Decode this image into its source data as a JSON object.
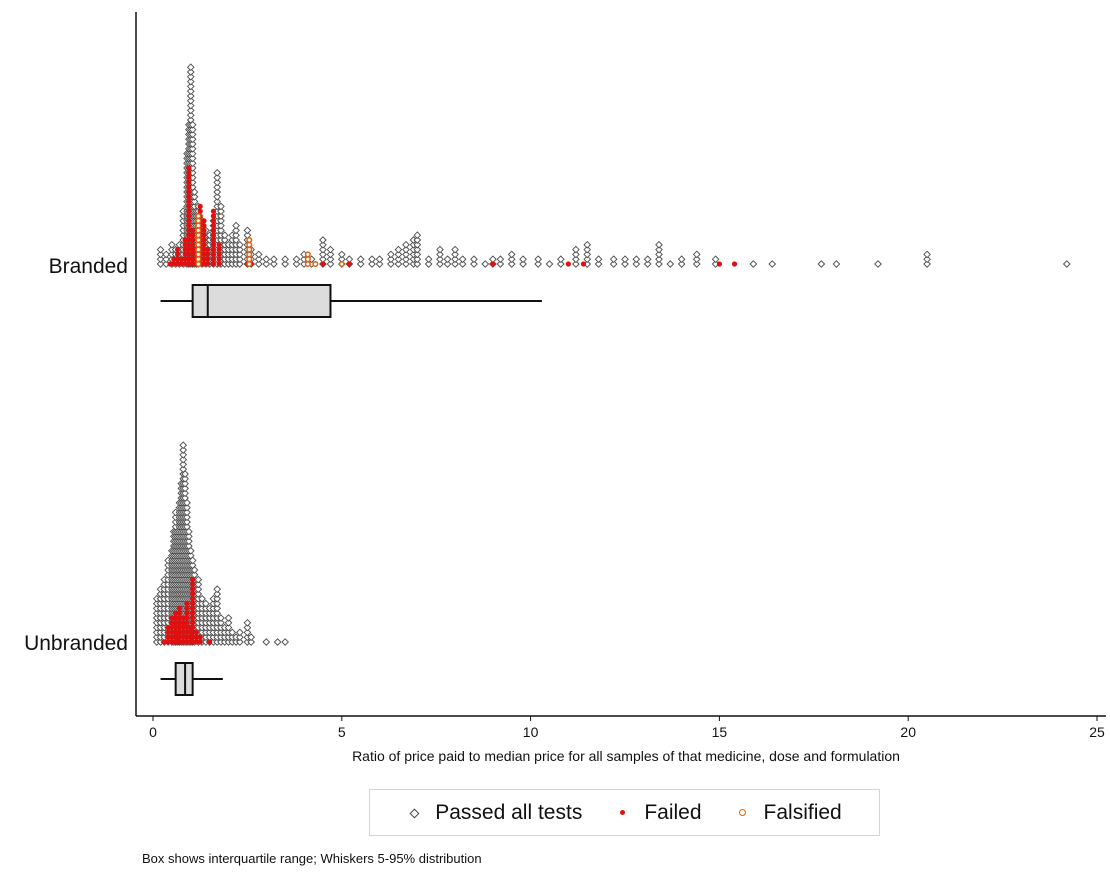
{
  "chart_data": {
    "type": "scatter",
    "categories": [
      "Branded",
      "Unbranded"
    ],
    "xlabel": "Ratio of price paid to median price for all samples of that medicine, dose and formulation",
    "xlim": [
      0,
      25
    ],
    "x_ticks": [
      0,
      5,
      10,
      15,
      20,
      25
    ],
    "legend": {
      "placement": "bottom",
      "entries": [
        {
          "name": "Passed all tests",
          "marker": "diamond",
          "color": "#444444"
        },
        {
          "name": "Failed",
          "marker": "filled-dot",
          "color": "#e01010"
        },
        {
          "name": "Falsified",
          "marker": "open-dot",
          "color": "#e0600c"
        }
      ]
    },
    "caption": "Box shows interquartile range; Whiskers 5-95% distribution",
    "boxes": [
      {
        "category": "Branded",
        "whisker_low": 0.2,
        "q1": 1.05,
        "median": 1.45,
        "q3": 4.7,
        "whisker_high": 10.3
      },
      {
        "category": "Unbranded",
        "whisker_low": 0.2,
        "q1": 0.6,
        "median": 0.85,
        "q3": 1.05,
        "whisker_high": 1.85
      }
    ],
    "series": [
      {
        "name": "Passed all tests",
        "stacks": {
          "Branded": [
            [
              0.2,
              4
            ],
            [
              0.35,
              3
            ],
            [
              0.5,
              5
            ],
            [
              0.6,
              4
            ],
            [
              0.7,
              5
            ],
            [
              0.8,
              12
            ],
            [
              0.9,
              24
            ],
            [
              0.95,
              30
            ],
            [
              1.0,
              42
            ],
            [
              1.05,
              30
            ],
            [
              1.1,
              16
            ],
            [
              1.15,
              12
            ],
            [
              1.2,
              13
            ],
            [
              1.3,
              10
            ],
            [
              1.4,
              8
            ],
            [
              1.5,
              7
            ],
            [
              1.6,
              10
            ],
            [
              1.7,
              20
            ],
            [
              1.8,
              13
            ],
            [
              1.9,
              7
            ],
            [
              2.0,
              5
            ],
            [
              2.1,
              7
            ],
            [
              2.2,
              9
            ],
            [
              2.3,
              5
            ],
            [
              2.5,
              8
            ],
            [
              2.6,
              4
            ],
            [
              2.8,
              3
            ],
            [
              3.0,
              2
            ],
            [
              3.2,
              2
            ],
            [
              3.5,
              2
            ],
            [
              3.8,
              2
            ],
            [
              4.0,
              3
            ],
            [
              4.2,
              2
            ],
            [
              4.5,
              6
            ],
            [
              4.7,
              4
            ],
            [
              5.0,
              3
            ],
            [
              5.2,
              2
            ],
            [
              5.5,
              2
            ],
            [
              5.8,
              2
            ],
            [
              6.0,
              2
            ],
            [
              6.3,
              3
            ],
            [
              6.5,
              4
            ],
            [
              6.7,
              5
            ],
            [
              6.9,
              6
            ],
            [
              7.0,
              7
            ],
            [
              7.3,
              2
            ],
            [
              7.6,
              4
            ],
            [
              7.8,
              2
            ],
            [
              8.0,
              4
            ],
            [
              8.2,
              2
            ],
            [
              8.5,
              2
            ],
            [
              8.8,
              1
            ],
            [
              9.0,
              2
            ],
            [
              9.2,
              2
            ],
            [
              9.5,
              3
            ],
            [
              9.8,
              2
            ],
            [
              10.2,
              2
            ],
            [
              10.5,
              1
            ],
            [
              10.8,
              2
            ],
            [
              11.2,
              4
            ],
            [
              11.5,
              5
            ],
            [
              11.8,
              2
            ],
            [
              12.2,
              2
            ],
            [
              12.5,
              2
            ],
            [
              12.8,
              2
            ],
            [
              13.1,
              2
            ],
            [
              13.4,
              5
            ],
            [
              13.7,
              1
            ],
            [
              14.0,
              2
            ],
            [
              14.4,
              3
            ],
            [
              14.9,
              2
            ],
            [
              15.9,
              1
            ],
            [
              16.4,
              1
            ],
            [
              17.7,
              1
            ],
            [
              18.1,
              1
            ],
            [
              19.2,
              1
            ],
            [
              20.5,
              3
            ],
            [
              24.2,
              1
            ]
          ],
          "Unbranded": [
            [
              0.1,
              10
            ],
            [
              0.2,
              12
            ],
            [
              0.3,
              14
            ],
            [
              0.4,
              18
            ],
            [
              0.5,
              20
            ],
            [
              0.55,
              24
            ],
            [
              0.6,
              28
            ],
            [
              0.65,
              24
            ],
            [
              0.7,
              30
            ],
            [
              0.75,
              34
            ],
            [
              0.8,
              42
            ],
            [
              0.85,
              36
            ],
            [
              0.9,
              30
            ],
            [
              0.95,
              24
            ],
            [
              1.0,
              20
            ],
            [
              1.05,
              18
            ],
            [
              1.1,
              16
            ],
            [
              1.2,
              14
            ],
            [
              1.3,
              10
            ],
            [
              1.4,
              9
            ],
            [
              1.5,
              8
            ],
            [
              1.6,
              10
            ],
            [
              1.7,
              12
            ],
            [
              1.8,
              6
            ],
            [
              1.9,
              4
            ],
            [
              2.0,
              6
            ],
            [
              2.1,
              3
            ],
            [
              2.2,
              2
            ],
            [
              2.3,
              3
            ],
            [
              2.5,
              5
            ],
            [
              2.6,
              2
            ],
            [
              3.0,
              1
            ],
            [
              3.3,
              1
            ],
            [
              3.5,
              1
            ]
          ]
        }
      },
      {
        "name": "Failed",
        "stacks": {
          "Branded": [
            [
              0.45,
              1
            ],
            [
              0.55,
              2
            ],
            [
              0.65,
              4
            ],
            [
              0.75,
              2
            ],
            [
              0.85,
              6
            ],
            [
              0.95,
              21
            ],
            [
              1.05,
              8
            ],
            [
              1.15,
              4
            ],
            [
              1.25,
              13
            ],
            [
              1.35,
              10
            ],
            [
              1.45,
              4
            ],
            [
              1.6,
              12
            ],
            [
              1.75,
              5
            ],
            [
              2.5,
              1
            ],
            [
              2.6,
              1
            ],
            [
              4.1,
              1
            ],
            [
              4.5,
              1
            ],
            [
              5.2,
              1
            ],
            [
              9.0,
              1
            ],
            [
              11.0,
              1
            ],
            [
              11.4,
              1
            ],
            [
              15.0,
              1
            ],
            [
              15.4,
              1
            ]
          ],
          "Unbranded": [
            [
              0.3,
              1
            ],
            [
              0.4,
              4
            ],
            [
              0.5,
              6
            ],
            [
              0.6,
              7
            ],
            [
              0.65,
              3
            ],
            [
              0.7,
              8
            ],
            [
              0.8,
              6
            ],
            [
              0.9,
              9
            ],
            [
              1.0,
              4
            ],
            [
              1.05,
              14
            ],
            [
              1.15,
              3
            ],
            [
              1.25,
              2
            ],
            [
              1.5,
              1
            ]
          ]
        }
      },
      {
        "name": "Falsified",
        "stacks": {
          "Branded": [
            [
              1.2,
              11
            ],
            [
              2.55,
              6
            ],
            [
              4.1,
              3
            ],
            [
              4.3,
              1
            ],
            [
              5.0,
              1
            ]
          ],
          "Unbranded": []
        }
      }
    ]
  }
}
